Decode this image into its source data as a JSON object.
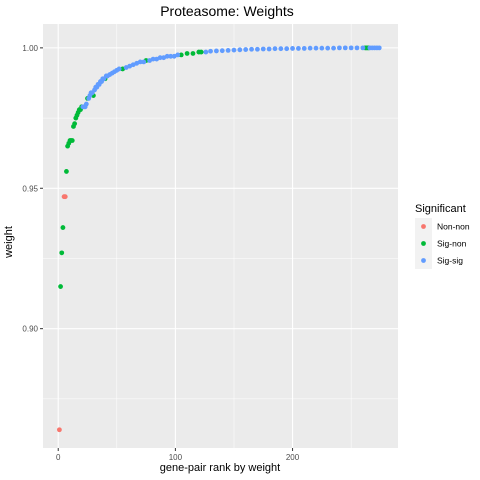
{
  "chart_data": {
    "type": "scatter",
    "title": "Proteasome: Weights",
    "xlabel": "gene-pair rank by weight",
    "ylabel": "weight",
    "xlim": [
      -13,
      290
    ],
    "ylim": [
      0.8575,
      1.0085
    ],
    "x_ticks": [
      0,
      100,
      200
    ],
    "y_ticks": [
      0.9,
      0.95,
      1.0
    ],
    "x_tick_labels": [
      "0",
      "100",
      "200"
    ],
    "y_tick_labels": [
      "0.90",
      "0.95",
      "1.00"
    ],
    "grid": true,
    "legend": {
      "title": "Significant",
      "placement": "right",
      "entries": [
        {
          "name": "Non-non",
          "color": "#F8766D"
        },
        {
          "name": "Sig-non",
          "color": "#00BA38"
        },
        {
          "name": "Sig-sig",
          "color": "#619CFF"
        }
      ]
    },
    "series": [
      {
        "name": "Non-non",
        "color": "#F8766D",
        "points": [
          [
            1,
            0.864
          ],
          [
            5,
            0.947
          ],
          [
            6,
            0.947
          ]
        ]
      },
      {
        "name": "Sig-non",
        "color": "#00BA38",
        "points": [
          [
            2,
            0.915
          ],
          [
            3,
            0.927
          ],
          [
            4,
            0.936
          ],
          [
            7,
            0.956
          ],
          [
            8,
            0.965
          ],
          [
            9,
            0.966
          ],
          [
            10,
            0.967
          ],
          [
            11,
            0.967
          ],
          [
            12,
            0.967
          ],
          [
            13,
            0.972
          ],
          [
            14,
            0.973
          ],
          [
            15,
            0.975
          ],
          [
            16,
            0.976
          ],
          [
            17,
            0.977
          ],
          [
            18,
            0.978
          ],
          [
            19,
            0.978
          ],
          [
            20,
            0.979
          ],
          [
            25,
            0.982
          ],
          [
            30,
            0.983
          ],
          [
            40,
            0.989
          ],
          [
            55,
            0.9925
          ],
          [
            75,
            0.9955
          ],
          [
            105,
            0.9975
          ],
          [
            110,
            0.998
          ],
          [
            115,
            0.998
          ],
          [
            120,
            0.9985
          ],
          [
            122,
            0.9985
          ],
          [
            262,
            1.0
          ],
          [
            263,
            1.0
          ],
          [
            264,
            1.0
          ],
          [
            265,
            1.0
          ]
        ]
      },
      {
        "name": "Sig-sig",
        "color": "#619CFF",
        "points": [
          [
            21,
            0.979
          ],
          [
            22,
            0.979
          ],
          [
            23,
            0.979
          ],
          [
            24,
            0.98
          ],
          [
            26,
            0.982
          ],
          [
            27,
            0.983
          ],
          [
            28,
            0.984
          ],
          [
            29,
            0.984
          ],
          [
            31,
            0.985
          ],
          [
            32,
            0.986
          ],
          [
            33,
            0.986
          ],
          [
            34,
            0.987
          ],
          [
            35,
            0.987
          ],
          [
            36,
            0.988
          ],
          [
            37,
            0.988
          ],
          [
            38,
            0.989
          ],
          [
            39,
            0.989
          ],
          [
            41,
            0.99
          ],
          [
            42,
            0.99
          ],
          [
            44,
            0.9905
          ],
          [
            46,
            0.991
          ],
          [
            48,
            0.9915
          ],
          [
            50,
            0.992
          ],
          [
            52,
            0.9925
          ],
          [
            58,
            0.993
          ],
          [
            61,
            0.9935
          ],
          [
            64,
            0.994
          ],
          [
            67,
            0.9945
          ],
          [
            70,
            0.995
          ],
          [
            73,
            0.995
          ],
          [
            78,
            0.9955
          ],
          [
            81,
            0.996
          ],
          [
            84,
            0.996
          ],
          [
            87,
            0.9965
          ],
          [
            90,
            0.9965
          ],
          [
            93,
            0.997
          ],
          [
            96,
            0.997
          ],
          [
            99,
            0.997
          ],
          [
            102,
            0.9975
          ],
          [
            126,
            0.9985
          ],
          [
            130,
            0.9988
          ],
          [
            135,
            0.9989
          ],
          [
            140,
            0.999
          ],
          [
            145,
            0.9991
          ],
          [
            150,
            0.9992
          ],
          [
            155,
            0.9993
          ],
          [
            160,
            0.9994
          ],
          [
            165,
            0.9995
          ],
          [
            170,
            0.9995
          ],
          [
            175,
            0.9996
          ],
          [
            180,
            0.9996
          ],
          [
            185,
            0.9997
          ],
          [
            190,
            0.9997
          ],
          [
            195,
            0.9997
          ],
          [
            200,
            0.9998
          ],
          [
            205,
            0.9998
          ],
          [
            210,
            0.9998
          ],
          [
            215,
            0.9999
          ],
          [
            220,
            0.9999
          ],
          [
            225,
            0.9999
          ],
          [
            230,
            0.9999
          ],
          [
            235,
            0.9999
          ],
          [
            240,
            1.0
          ],
          [
            245,
            1.0
          ],
          [
            250,
            1.0
          ],
          [
            255,
            1.0
          ],
          [
            260,
            1.0
          ],
          [
            266,
            1.0
          ],
          [
            268,
            1.0
          ],
          [
            270,
            1.0
          ],
          [
            272,
            1.0
          ],
          [
            274,
            1.0
          ]
        ]
      }
    ]
  }
}
